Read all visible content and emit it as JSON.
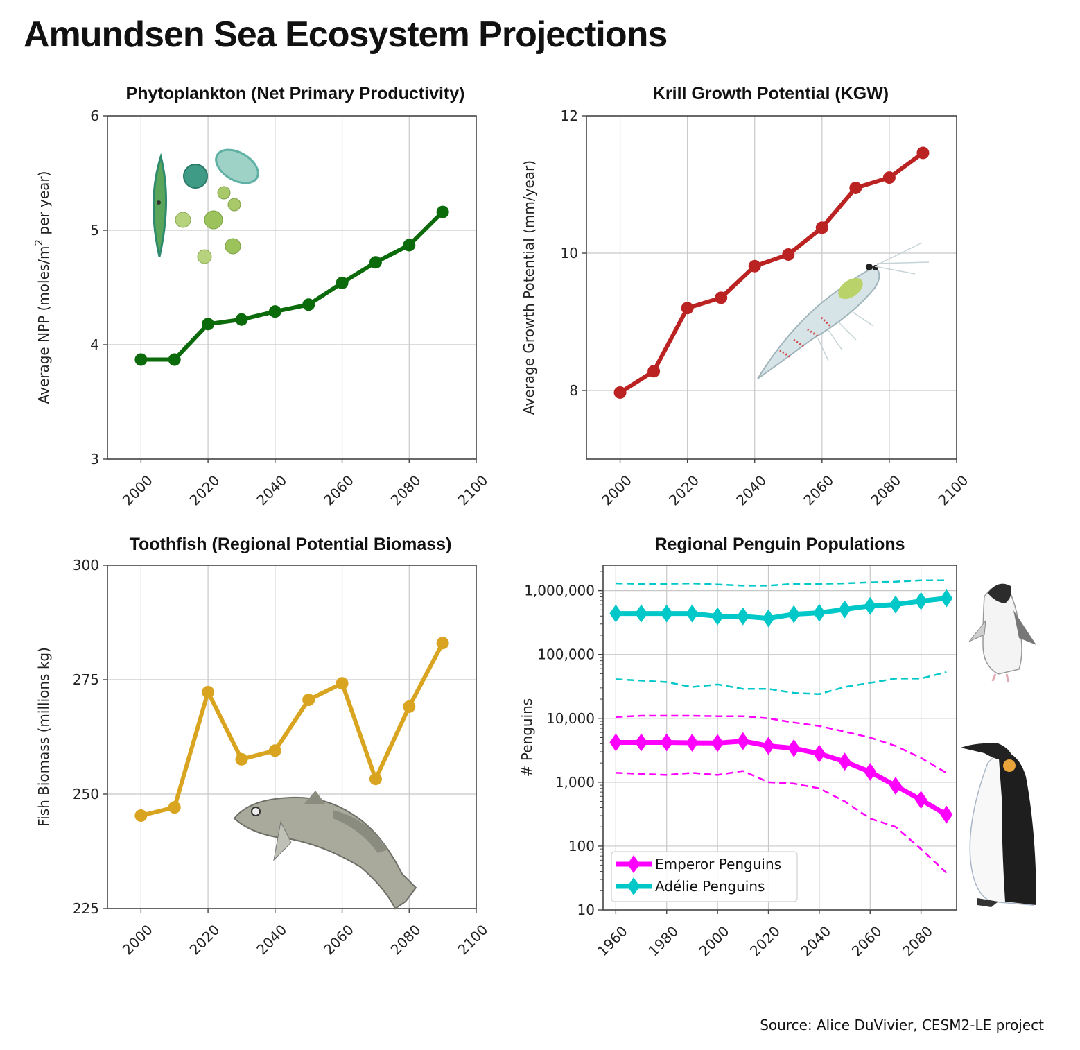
{
  "title": "Amundsen Sea Ecosystem Projections",
  "source": "Source: Alice DuVivier, CESM2-LE project",
  "colors": {
    "phytoplankton": "#0b6b0b",
    "krill": "#bb2222",
    "toothfish": "#d9a521",
    "emperor": "#ff00ff",
    "adelie": "#00c8c8"
  },
  "illustrations": {
    "phytoplankton": "phytoplankton-illustration",
    "krill": "krill-illustration",
    "toothfish": "toothfish-illustration",
    "adelie": "adelie-penguin-illustration",
    "emperor": "emperor-penguin-illustration"
  },
  "chart_data": [
    {
      "id": "phytoplankton",
      "type": "line",
      "title": "Phytoplankton (Net Primary Productivity)",
      "xlabel": "",
      "ylabel": "Average NPP (moles/m² per year)",
      "ylabel_parts": [
        "Average NPP (moles/m",
        "2",
        " per year)"
      ],
      "xlim": [
        1990,
        2100
      ],
      "ylim": [
        3,
        6
      ],
      "xticks": [
        2000,
        2020,
        2040,
        2060,
        2080,
        2100
      ],
      "yticks": [
        3,
        4,
        5,
        6
      ],
      "ytick_labels": [
        "3",
        "4",
        "5",
        "6"
      ],
      "grid": true,
      "x": [
        2000,
        2010,
        2020,
        2030,
        2040,
        2050,
        2060,
        2070,
        2080,
        2090
      ],
      "values": [
        3.87,
        3.87,
        4.18,
        4.22,
        4.29,
        4.35,
        4.54,
        4.72,
        4.87,
        5.16
      ]
    },
    {
      "id": "krill",
      "type": "line",
      "title": "Krill Growth Potential (KGW)",
      "xlabel": "",
      "ylabel": "Average Growth Potential (mm/year)",
      "xlim": [
        1990,
        2100
      ],
      "ylim": [
        7,
        12
      ],
      "xticks": [
        2000,
        2020,
        2040,
        2060,
        2080,
        2100
      ],
      "yticks": [
        8,
        10,
        12
      ],
      "ytick_labels": [
        "8",
        "10",
        "12"
      ],
      "grid": true,
      "x": [
        2000,
        2010,
        2020,
        2030,
        2040,
        2050,
        2060,
        2070,
        2080,
        2090
      ],
      "values": [
        7.97,
        8.28,
        9.2,
        9.35,
        9.81,
        9.98,
        10.37,
        10.95,
        11.1,
        11.46
      ]
    },
    {
      "id": "toothfish",
      "type": "line",
      "title": "Toothfish (Regional Potential Biomass)",
      "xlabel": "",
      "ylabel": "Fish Biomass (millions kg)",
      "xlim": [
        1990,
        2100
      ],
      "ylim": [
        225,
        300
      ],
      "xticks": [
        2000,
        2020,
        2040,
        2060,
        2080,
        2100
      ],
      "yticks": [
        225,
        250,
        275,
        300
      ],
      "ytick_labels": [
        "225",
        "250",
        "275",
        "300"
      ],
      "grid": true,
      "x": [
        2000,
        2010,
        2020,
        2030,
        2040,
        2050,
        2060,
        2070,
        2080,
        2090
      ],
      "values": [
        245.3,
        247.1,
        272.3,
        257.6,
        259.5,
        270.6,
        274.2,
        253.3,
        269.1,
        283.0
      ]
    },
    {
      "id": "penguins",
      "type": "line",
      "yscale": "log",
      "title": "Regional Penguin Populations",
      "xlabel": "",
      "ylabel": "# Penguins",
      "xlim": [
        1955,
        2094
      ],
      "ylim": [
        10,
        2500000
      ],
      "xticks": [
        1960,
        1980,
        2000,
        2020,
        2040,
        2060,
        2080
      ],
      "yticks": [
        10,
        100,
        1000,
        10000,
        100000,
        1000000
      ],
      "ytick_labels": [
        "10",
        "100",
        "1,000",
        "10,000",
        "100,000",
        "1,000,000"
      ],
      "grid": true,
      "legend": "lower-left",
      "x": [
        1960,
        1970,
        1980,
        1990,
        2000,
        2010,
        2020,
        2030,
        2040,
        2050,
        2060,
        2070,
        2080,
        2090
      ],
      "series": [
        {
          "name": "Emperor Penguins",
          "color_key": "emperor",
          "values": [
            4200,
            4200,
            4200,
            4150,
            4100,
            4400,
            3700,
            3400,
            2800,
            2100,
            1450,
            880,
            530,
            310
          ],
          "upper": [
            10500,
            11000,
            11000,
            11000,
            10800,
            10800,
            10000,
            8600,
            7600,
            6200,
            5000,
            3700,
            2400,
            1400
          ],
          "lower": [
            1400,
            1350,
            1300,
            1400,
            1300,
            1500,
            1000,
            950,
            800,
            500,
            270,
            200,
            90,
            38
          ]
        },
        {
          "name": "Adélie Penguins",
          "color_key": "adelie",
          "values": [
            438000,
            438000,
            438000,
            438000,
            396000,
            396000,
            368000,
            427000,
            449000,
            509000,
            576000,
            606000,
            687000,
            759000
          ],
          "upper": [
            1300000,
            1280000,
            1280000,
            1300000,
            1250000,
            1200000,
            1200000,
            1280000,
            1280000,
            1300000,
            1350000,
            1380000,
            1450000,
            1450000
          ],
          "lower": [
            41000,
            39000,
            37000,
            31000,
            34000,
            29000,
            29000,
            25000,
            24000,
            31000,
            36000,
            42000,
            42000,
            53000
          ]
        }
      ]
    }
  ]
}
